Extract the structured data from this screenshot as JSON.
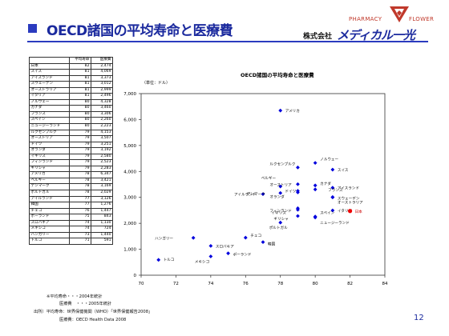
{
  "header": {
    "title": "OECD諸国の平均寿命と医療費",
    "company_prefix": "株式会社",
    "company_brand": "メディカル一光",
    "logo_word1": "PHARMACY",
    "logo_word2": "FLOWER"
  },
  "table": {
    "headers": [
      "",
      "平均寿命",
      "医療費"
    ],
    "rows": [
      [
        "日本",
        "82",
        "2,474"
      ],
      [
        "スイス",
        "81",
        "4,069"
      ],
      [
        "アイスランド",
        "81",
        "3,373"
      ],
      [
        "スウェーデン",
        "81",
        "3,012"
      ],
      [
        "オーストラリア",
        "81",
        "2,999"
      ],
      [
        "イタリア",
        "81",
        "2,496"
      ],
      [
        "ノルウェー",
        "80",
        "4,328"
      ],
      [
        "カナダ",
        "80",
        "3,460"
      ],
      [
        "フランス",
        "80",
        "3,306"
      ],
      [
        "スペイン",
        "80",
        "2,260"
      ],
      [
        "ニュージーランド",
        "80",
        "2,223"
      ],
      [
        "ルクセンブルク",
        "79",
        "4,153"
      ],
      [
        "オーストリア",
        "79",
        "3,507"
      ],
      [
        "ドイツ",
        "79",
        "3,251"
      ],
      [
        "オランダ",
        "79",
        "3,192"
      ],
      [
        "イギリス",
        "79",
        "2,580"
      ],
      [
        "フィンランド",
        "79",
        "2,523"
      ],
      [
        "ギリシャ",
        "79",
        "2,283"
      ],
      [
        "アメリカ",
        "78",
        "6,347"
      ],
      [
        "ベルギー",
        "78",
        "3,421"
      ],
      [
        "デンマーク",
        "78",
        "3,169"
      ],
      [
        "ポルトガル",
        "78",
        "2,029"
      ],
      [
        "アイルランド",
        "77",
        "3,126"
      ],
      [
        "韓国",
        "77",
        "1,276"
      ],
      [
        "チェコ",
        "76",
        "1,447"
      ],
      [
        "ポーランド",
        "75",
        "843"
      ],
      [
        "スロバキア",
        "74",
        "1,130"
      ],
      [
        "メキシコ",
        "74",
        "724"
      ],
      [
        "ハンガリー",
        "73",
        "1,440"
      ],
      [
        "トルコ",
        "71",
        "591"
      ]
    ]
  },
  "notes": [
    "※平均寿命・・・2004年統計",
    "医療費　・・・2005年統計",
    "出所）平均寿命：世界保健機関（WHO）「世界保健報告2008」",
    "医療費：OECD Health Data 2008"
  ],
  "page_number": "12",
  "colors": {
    "title": "#1b2a9e",
    "point": "#0000dd",
    "highlight": "#ee0000"
  },
  "chart_data": {
    "type": "scatter",
    "title": "OECD諸国の平均寿命と医療費",
    "unit_label": "（単位：ドル）",
    "xlabel": "",
    "ylabel": "",
    "xlim": [
      70,
      84
    ],
    "ylim": [
      0,
      7000
    ],
    "xticks": [
      "70",
      "72",
      "74",
      "76",
      "78",
      "80",
      "82",
      "84"
    ],
    "yticks": [
      "0",
      "1,000",
      "2,000",
      "3,000",
      "4,000",
      "5,000",
      "6,000",
      "7,000"
    ],
    "xtick_values": [
      70,
      72,
      74,
      76,
      78,
      80,
      82,
      84
    ],
    "ytick_values": [
      0,
      1000,
      2000,
      3000,
      4000,
      5000,
      6000,
      7000
    ],
    "grid": false,
    "highlight": "日本",
    "points": [
      {
        "name": "アメリカ",
        "x": 78,
        "y": 6347
      },
      {
        "name": "ルクセンブルク",
        "x": 79,
        "y": 4153
      },
      {
        "name": "ノルウェー",
        "x": 80,
        "y": 4328
      },
      {
        "name": "スイス",
        "x": 81,
        "y": 4069
      },
      {
        "name": "ベルギー",
        "x": 78,
        "y": 3421
      },
      {
        "name": "オーストリア",
        "x": 79,
        "y": 3507
      },
      {
        "name": "カナダ",
        "x": 80,
        "y": 3460
      },
      {
        "name": "アイスランド",
        "x": 81,
        "y": 3373
      },
      {
        "name": "アイルランド",
        "x": 77,
        "y": 3126
      },
      {
        "name": "ドイツ",
        "x": 79,
        "y": 3251
      },
      {
        "name": "フランス",
        "x": 80,
        "y": 3306
      },
      {
        "name": "スウェーデン",
        "x": 81,
        "y": 3012
      },
      {
        "name": "オランダ",
        "x": 79,
        "y": 3192
      },
      {
        "name": "デンマーク",
        "x": 78,
        "y": 3169
      },
      {
        "name": "オーストラリア",
        "x": 81,
        "y": 2999
      },
      {
        "name": "イギリス",
        "x": 79,
        "y": 2580
      },
      {
        "name": "フィンランド",
        "x": 79,
        "y": 2523
      },
      {
        "name": "イタリア",
        "x": 81,
        "y": 2496
      },
      {
        "name": "日本",
        "x": 82,
        "y": 2474
      },
      {
        "name": "スペイン",
        "x": 80,
        "y": 2260
      },
      {
        "name": "ギリシャ",
        "x": 79,
        "y": 2283
      },
      {
        "name": "ニュージーランド",
        "x": 80,
        "y": 2223
      },
      {
        "name": "ポルトガル",
        "x": 78,
        "y": 2029
      },
      {
        "name": "ハンガリー",
        "x": 73,
        "y": 1440
      },
      {
        "name": "チェコ",
        "x": 76,
        "y": 1447
      },
      {
        "name": "韓国",
        "x": 77,
        "y": 1276
      },
      {
        "name": "スロバキア",
        "x": 74,
        "y": 1130
      },
      {
        "name": "ポーランド",
        "x": 75,
        "y": 843
      },
      {
        "name": "メキシコ",
        "x": 74,
        "y": 724
      },
      {
        "name": "トルコ",
        "x": 71,
        "y": 591
      }
    ]
  }
}
